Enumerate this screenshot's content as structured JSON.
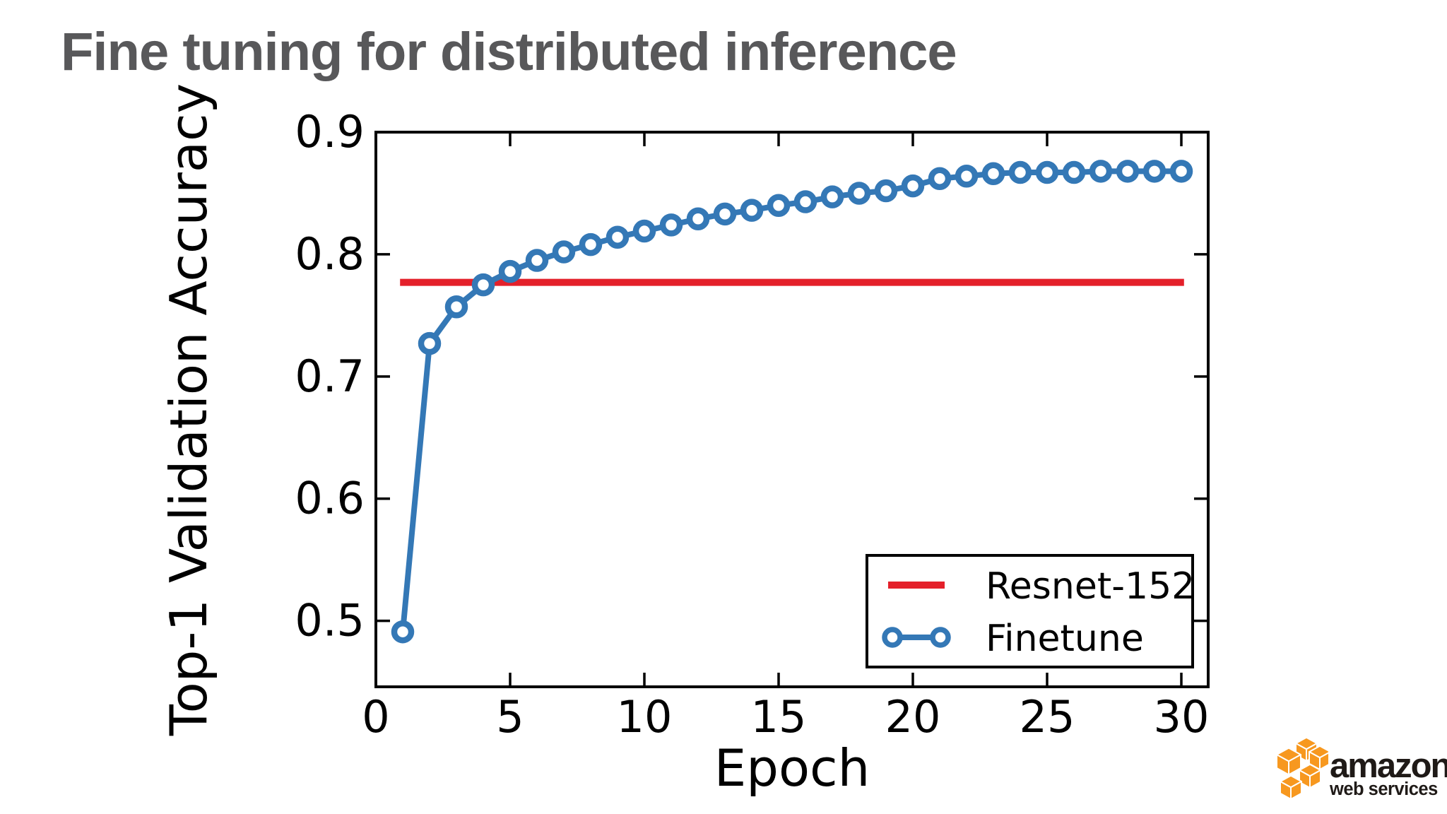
{
  "title": {
    "text": "Fine tuning for distributed inference"
  },
  "logo": {
    "brand": "amazon",
    "sub": "web services"
  },
  "colors": {
    "title_gray": "#58585a",
    "finetune_blue": "#3478b6",
    "resnet_red": "#e4202a",
    "axis_black": "#000000",
    "aws_orange": "#f7981f",
    "background": "#ffffff"
  },
  "chart_data": {
    "type": "line",
    "title": "",
    "xlabel": "Epoch",
    "ylabel": "Top-1 Validation Accuracy",
    "xlim": [
      0,
      31
    ],
    "ylim": [
      0.446,
      0.9
    ],
    "xticks": [
      0,
      5,
      10,
      15,
      20,
      25,
      30
    ],
    "yticks": [
      0.5,
      0.6,
      0.7,
      0.8,
      0.9
    ],
    "grid": false,
    "legend": {
      "position": "lower right",
      "entries": [
        "Resnet-152",
        "Finetune"
      ]
    },
    "series": [
      {
        "name": "Resnet-152",
        "type": "hline",
        "color": "#e4202a",
        "y": 0.777,
        "x_start": 0.9,
        "x_end": 30.1
      },
      {
        "name": "Finetune",
        "type": "line",
        "marker": "circle",
        "color": "#3478b6",
        "x": [
          1,
          2,
          3,
          4,
          5,
          6,
          7,
          8,
          9,
          10,
          11,
          12,
          13,
          14,
          15,
          16,
          17,
          18,
          19,
          20,
          21,
          22,
          23,
          24,
          25,
          26,
          27,
          28,
          29,
          30
        ],
        "y": [
          0.491,
          0.727,
          0.757,
          0.775,
          0.786,
          0.795,
          0.802,
          0.808,
          0.814,
          0.819,
          0.824,
          0.829,
          0.833,
          0.836,
          0.84,
          0.843,
          0.847,
          0.85,
          0.852,
          0.856,
          0.862,
          0.864,
          0.866,
          0.867,
          0.867,
          0.867,
          0.868,
          0.868,
          0.868,
          0.868
        ]
      }
    ]
  }
}
